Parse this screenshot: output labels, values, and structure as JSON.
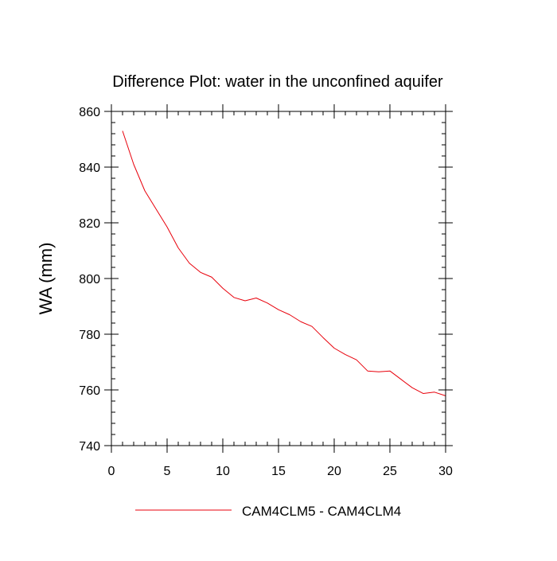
{
  "chart_data": {
    "type": "line",
    "title": "Difference Plot: water in the unconfined aquifer",
    "xlabel": "",
    "ylabel": "WA  (mm)",
    "xlim": [
      0,
      30
    ],
    "ylim": [
      740,
      860
    ],
    "x_ticks": [
      0,
      5,
      10,
      15,
      20,
      25,
      30
    ],
    "y_ticks": [
      740,
      760,
      780,
      800,
      820,
      840,
      860
    ],
    "x_minor_step": 1,
    "y_minor_step": 4,
    "grid": false,
    "legend_position": "bottom-center",
    "series": [
      {
        "name": "CAM4CLM5 - CAM4CLM4",
        "color": "#e8000b",
        "x": [
          1,
          2,
          3,
          4,
          5,
          6,
          7,
          8,
          9,
          10,
          11,
          12,
          13,
          14,
          15,
          16,
          17,
          18,
          19,
          20,
          21,
          22,
          23,
          24,
          25,
          26,
          27,
          28,
          29,
          30
        ],
        "y": [
          853,
          841,
          831.5,
          825,
          818.5,
          811,
          805.5,
          802.2,
          800.5,
          796.5,
          793.2,
          792,
          793,
          791.2,
          788.8,
          787,
          784.5,
          782.8,
          778.8,
          775,
          772.7,
          770.8,
          766.8,
          766.5,
          766.8,
          763.8,
          760.8,
          758.7,
          759.2,
          757.9
        ]
      }
    ]
  }
}
